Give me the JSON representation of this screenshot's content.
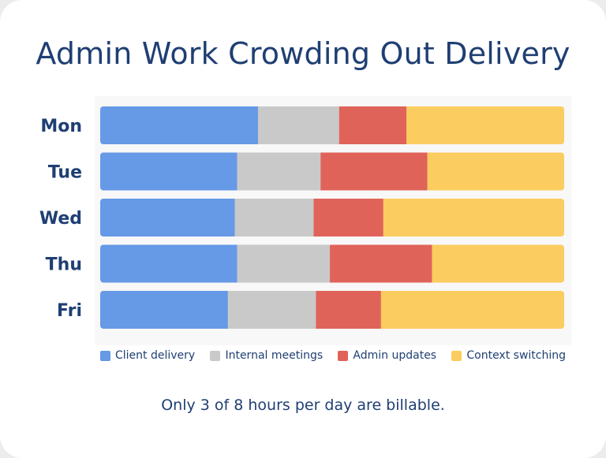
{
  "chart_data": {
    "type": "bar",
    "orientation": "horizontal",
    "stacked": true,
    "normalized": true,
    "title": "Admin Work Crowding Out Delivery",
    "categories": [
      "Mon",
      "Tue",
      "Wed",
      "Thu",
      "Fri"
    ],
    "series": [
      {
        "name": "Client delivery",
        "color": "#6699e6",
        "values": [
          34,
          29.5,
          29,
          29.5,
          27.5
        ]
      },
      {
        "name": "Internal meetings",
        "color": "#c9c9c9",
        "values": [
          17.5,
          18,
          17,
          20,
          19
        ]
      },
      {
        "name": "Admin updates",
        "color": "#e0635a",
        "values": [
          14.5,
          23,
          15,
          22,
          14
        ]
      },
      {
        "name": "Context switching",
        "color": "#fbcc5f",
        "values": [
          34,
          29.5,
          39,
          28.5,
          39.5
        ]
      }
    ],
    "xlim": [
      0,
      100
    ],
    "grid": false,
    "legend_position": "bottom"
  },
  "footnote": "Only 3 of 8 hours per day are billable."
}
